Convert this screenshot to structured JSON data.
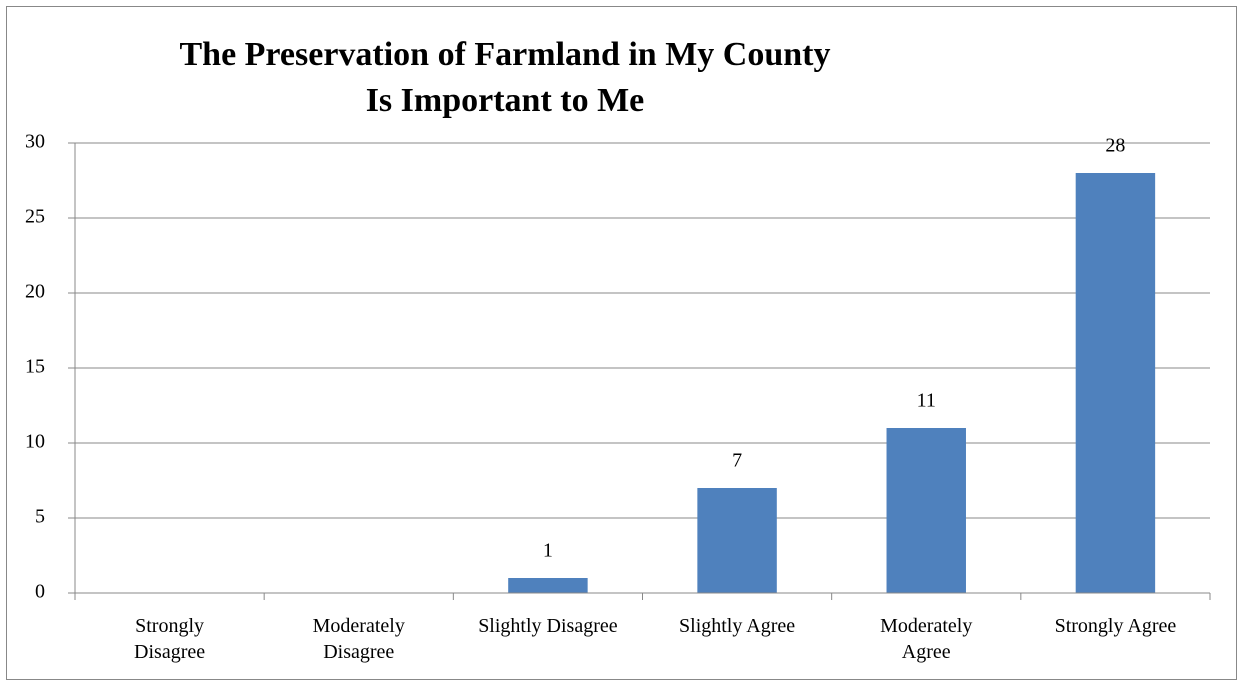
{
  "chart_data": {
    "type": "bar",
    "title": "The Preservation of Farmland in My County\nIs Important to Me",
    "categories": [
      "Strongly\nDisagree",
      "Moderately\nDisagree",
      "Slightly Disagree",
      "Slightly Agree",
      "Moderately\nAgree",
      "Strongly Agree"
    ],
    "values": [
      0,
      0,
      1,
      7,
      11,
      28
    ],
    "value_labels": [
      null,
      null,
      "1",
      "7",
      "11",
      "28"
    ],
    "color": "#4f81bd",
    "ylim": [
      0,
      30
    ],
    "yticks": [
      0,
      5,
      10,
      15,
      20,
      25,
      30
    ],
    "grid": true
  }
}
